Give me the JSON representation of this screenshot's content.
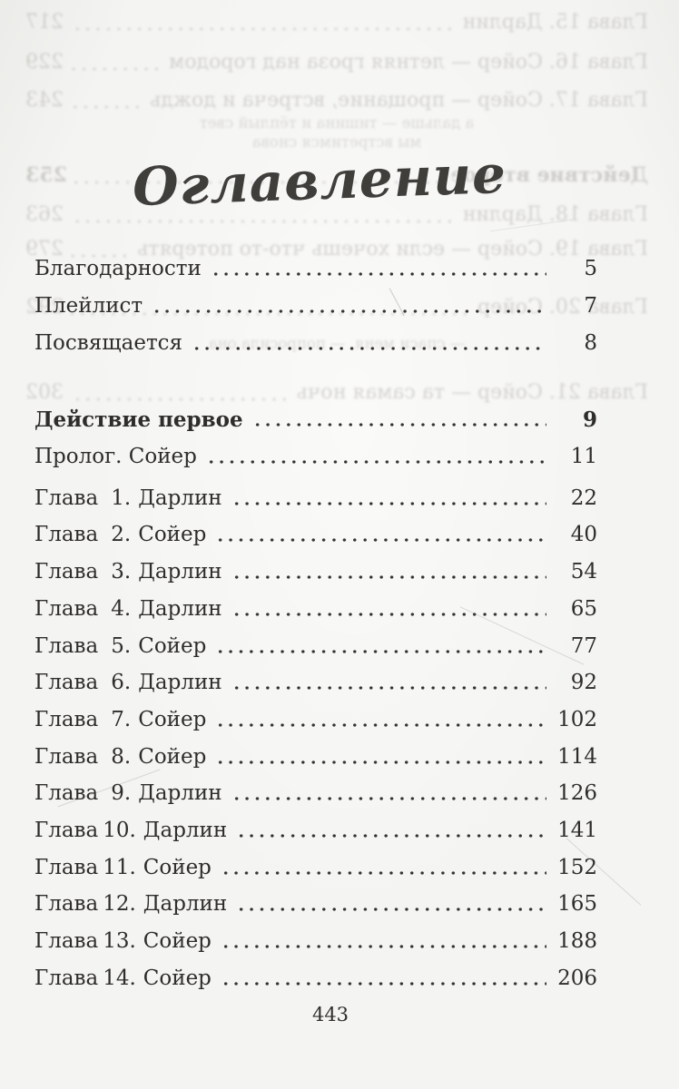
{
  "page": {
    "title": "Оглавление",
    "folio": "443",
    "colors": {
      "text": "#2e2d2b",
      "paper": "#f4f4f2",
      "bleed": "#b0aeaa"
    }
  },
  "toc": {
    "chapter_word": "Глава",
    "front_matter": [
      {
        "name": "Благодарности",
        "page": "5"
      },
      {
        "name": "Плейлист",
        "page": "7"
      },
      {
        "name": "Посвящается",
        "page": "8"
      }
    ],
    "act_one": {
      "name": "Действие первое",
      "page": "9"
    },
    "prologue": {
      "name": "Пролог. Сойер",
      "page": "11"
    },
    "chapters": [
      {
        "num": "1.",
        "name": "Дарлин",
        "page": "22"
      },
      {
        "num": "2.",
        "name": "Сойер",
        "page": "40"
      },
      {
        "num": "3.",
        "name": "Дарлин",
        "page": "54"
      },
      {
        "num": "4.",
        "name": "Дарлин",
        "page": "65"
      },
      {
        "num": "5.",
        "name": "Сойер",
        "page": "77"
      },
      {
        "num": "6.",
        "name": "Дарлин",
        "page": "92"
      },
      {
        "num": "7.",
        "name": "Сойер",
        "page": "102"
      },
      {
        "num": "8.",
        "name": "Сойер",
        "page": "114"
      },
      {
        "num": "9.",
        "name": "Дарлин",
        "page": "126"
      },
      {
        "num": "10.",
        "name": "Дарлин",
        "page": "141"
      },
      {
        "num": "11.",
        "name": "Сойер",
        "page": "152"
      },
      {
        "num": "12.",
        "name": "Дарлин",
        "page": "165"
      },
      {
        "num": "13.",
        "name": "Сойер",
        "page": "188"
      },
      {
        "num": "14.",
        "name": "Сойер",
        "page": "206"
      }
    ]
  },
  "bleedthrough": {
    "lines": [
      {
        "text": "Глава 15. Дарлин",
        "page": "217"
      },
      {
        "text": "Глава 16. Сойер — летняя гроза над городом",
        "page": "229"
      },
      {
        "text": "Глава 17. Сойер — прощание, встреча и дождь",
        "page": "243"
      },
      {
        "text": "а дальше — тишина и тёплый свет",
        "page": ""
      },
      {
        "text": "мы встретимся снова",
        "page": ""
      },
      {
        "text": "Действие второе",
        "page": "253"
      },
      {
        "text": "Глава 18. Дарлин",
        "page": "263"
      },
      {
        "text": "Глава 19. Сойер — если хочешь что-то потерять",
        "page": "279"
      },
      {
        "text": "Глава 20. Сойер",
        "page": "292"
      },
      {
        "text": "— спаси меня, — попросила она",
        "page": ""
      },
      {
        "text": "Глава 21. Сойер — та самая ночь",
        "page": "302"
      }
    ]
  }
}
